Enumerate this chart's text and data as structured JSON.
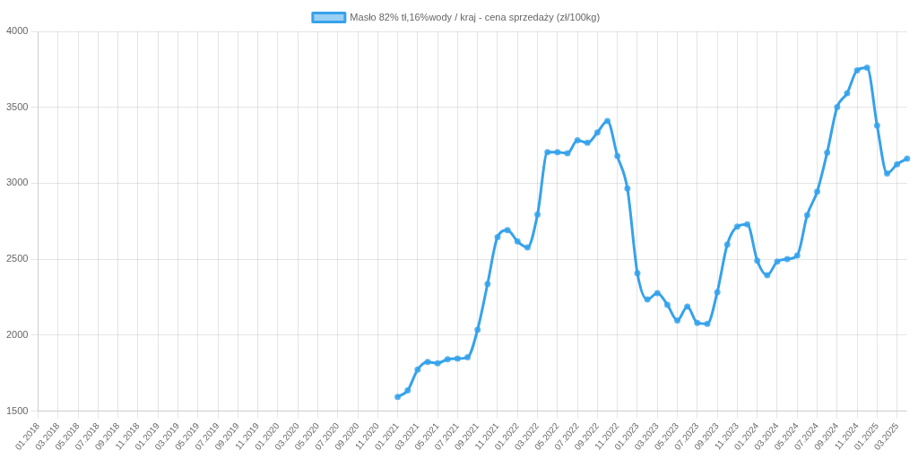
{
  "chart_data": {
    "type": "line",
    "categories": [
      "01.2018",
      null,
      "03.2018",
      null,
      "05.2018",
      null,
      "07.2018",
      null,
      "09.2018",
      null,
      "11.2018",
      null,
      "01.2019",
      null,
      "03.2019",
      null,
      "05.2019",
      null,
      "07.2019",
      null,
      "09.2019",
      null,
      "11.2019",
      null,
      "01.2020",
      null,
      "03.2020",
      null,
      "05.2020",
      null,
      "07.2020",
      null,
      "09.2020",
      null,
      "11.2020",
      null,
      "01.2021",
      null,
      "03.2021",
      null,
      "05.2021",
      null,
      "07.2021",
      null,
      "09.2021",
      null,
      "11.2021",
      null,
      "01.2022",
      null,
      "03.2022",
      null,
      "05.2022",
      null,
      "07.2022",
      null,
      "09.2022",
      null,
      "11.2022",
      null,
      "01.2023",
      null,
      "03.2023",
      null,
      "05.2023",
      null,
      "07.2023",
      null,
      "09.2023",
      null,
      "11.2023",
      null,
      "01.2024",
      null,
      "03.2024",
      null,
      "05.2024",
      null,
      "07.2024",
      null,
      "09.2024",
      null,
      "11.2024",
      null,
      "01.2025",
      null,
      "03.2025",
      null
    ],
    "series": [
      {
        "name": "Masło 82% tł,16%wody / kraj - cena sprzedaży (zł/100kg)",
        "color": "#36a2eb",
        "values": [
          null,
          null,
          null,
          null,
          null,
          null,
          null,
          null,
          null,
          null,
          null,
          null,
          null,
          null,
          null,
          null,
          null,
          null,
          null,
          null,
          null,
          null,
          null,
          null,
          null,
          null,
          null,
          null,
          null,
          null,
          null,
          null,
          null,
          null,
          null,
          null,
          1594,
          1636,
          1773,
          1823,
          1815,
          1842,
          1846,
          1854,
          2036,
          2337,
          2646,
          2692,
          2617,
          2578,
          2794,
          3204,
          3204,
          3198,
          3283,
          3266,
          3335,
          3410,
          3179,
          2965,
          2408,
          2235,
          2277,
          2200,
          2097,
          2188,
          2081,
          2075,
          2283,
          2597,
          2715,
          2730,
          2491,
          2395,
          2484,
          2501,
          2524,
          2790,
          2945,
          3202,
          3501,
          3593,
          3744,
          3761,
          3380,
          3065,
          3125,
          3162
        ]
      }
    ],
    "ylim": [
      1500,
      4000
    ],
    "yticks": [
      1500,
      2000,
      2500,
      3000,
      3500,
      4000
    ],
    "grid": true,
    "legend": "top",
    "marker": "circle",
    "line_style": "solid"
  }
}
